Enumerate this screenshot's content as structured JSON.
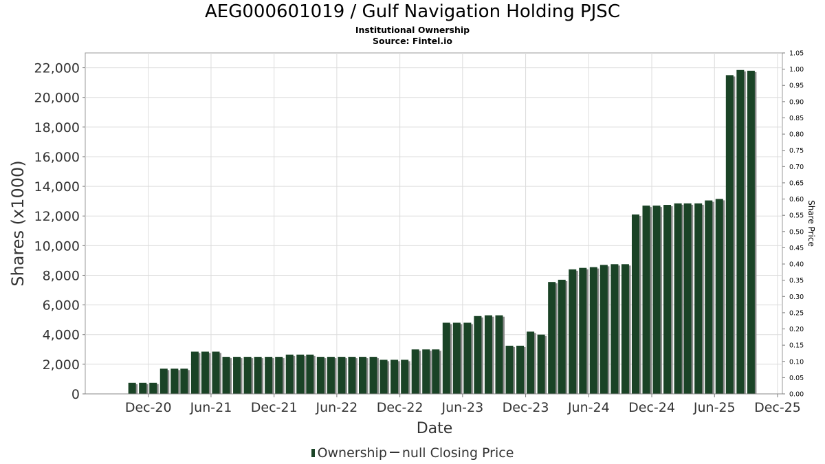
{
  "header": {
    "title": "AEG000601019 / Gulf Navigation Holding PJSC",
    "subtitle": "Institutional Ownership",
    "source": "Source: Fintel.io"
  },
  "legend": {
    "ownership": "Ownership",
    "price": "null Closing Price"
  },
  "chart_data": {
    "type": "bar",
    "xlabel": "Date",
    "ylabel": "Shares (x1000)",
    "y2label": "Share Price",
    "ylim": [
      0,
      23000
    ],
    "y2lim": [
      0,
      1.05
    ],
    "yticks": [
      "0",
      "2,000",
      "4,000",
      "6,000",
      "8,000",
      "10,000",
      "12,000",
      "14,000",
      "16,000",
      "18,000",
      "20,000",
      "22,000"
    ],
    "y2ticks": [
      "0.00",
      "0.05",
      "0.10",
      "0.15",
      "0.20",
      "0.25",
      "0.30",
      "0.35",
      "0.40",
      "0.45",
      "0.50",
      "0.55",
      "0.60",
      "0.65",
      "0.70",
      "0.75",
      "0.80",
      "0.85",
      "0.90",
      "0.95",
      "1.00",
      "1.05"
    ],
    "xticks": [
      "Dec-20",
      "Jun-21",
      "Dec-21",
      "Jun-22",
      "Dec-22",
      "Jun-23",
      "Dec-23",
      "Jun-24",
      "Dec-24",
      "Jun-25",
      "Dec-25"
    ],
    "grid": true,
    "legend_position": "bottom",
    "colors": {
      "bar": "#1a4326",
      "bar_shadow": "#8a8a8a"
    },
    "series": [
      {
        "name": "Ownership",
        "x": [
          "2020-10-15",
          "2020-11-15",
          "2020-12-15",
          "2021-01-15",
          "2021-02-15",
          "2021-03-15",
          "2021-04-15",
          "2021-05-15",
          "2021-06-15",
          "2021-07-15",
          "2021-08-15",
          "2021-09-15",
          "2021-10-15",
          "2021-11-15",
          "2021-12-15",
          "2022-01-15",
          "2022-02-15",
          "2022-03-15",
          "2022-04-15",
          "2022-05-15",
          "2022-06-15",
          "2022-07-15",
          "2022-08-15",
          "2022-09-15",
          "2022-10-15",
          "2022-11-15",
          "2022-12-15",
          "2023-01-15",
          "2023-02-15",
          "2023-03-15",
          "2023-04-15",
          "2023-05-15",
          "2023-06-15",
          "2023-07-15",
          "2023-08-15",
          "2023-09-15",
          "2023-10-15",
          "2023-11-15",
          "2023-12-15",
          "2024-01-15",
          "2024-02-15",
          "2024-03-15",
          "2024-04-15",
          "2024-05-15",
          "2024-06-15",
          "2024-07-15",
          "2024-08-15",
          "2024-09-15",
          "2024-10-15",
          "2024-11-15",
          "2024-12-15",
          "2025-01-15",
          "2025-02-15",
          "2025-03-15",
          "2025-04-15",
          "2025-05-15",
          "2025-06-15",
          "2025-07-15",
          "2025-08-15",
          "2025-09-15"
        ],
        "values": [
          750,
          750,
          750,
          1700,
          1700,
          1700,
          2850,
          2850,
          2850,
          2500,
          2500,
          2500,
          2500,
          2500,
          2500,
          2650,
          2650,
          2650,
          2500,
          2500,
          2500,
          2500,
          2500,
          2500,
          2300,
          2300,
          2300,
          3000,
          3000,
          3000,
          4800,
          4800,
          4800,
          5250,
          5300,
          5300,
          3250,
          3250,
          4200,
          4000,
          7550,
          7700,
          8400,
          8500,
          8550,
          8700,
          8750,
          8750,
          12100,
          12700,
          12700,
          12750,
          12850,
          12850,
          12850,
          13050,
          13150,
          21500,
          21850,
          21800
        ]
      }
    ]
  }
}
